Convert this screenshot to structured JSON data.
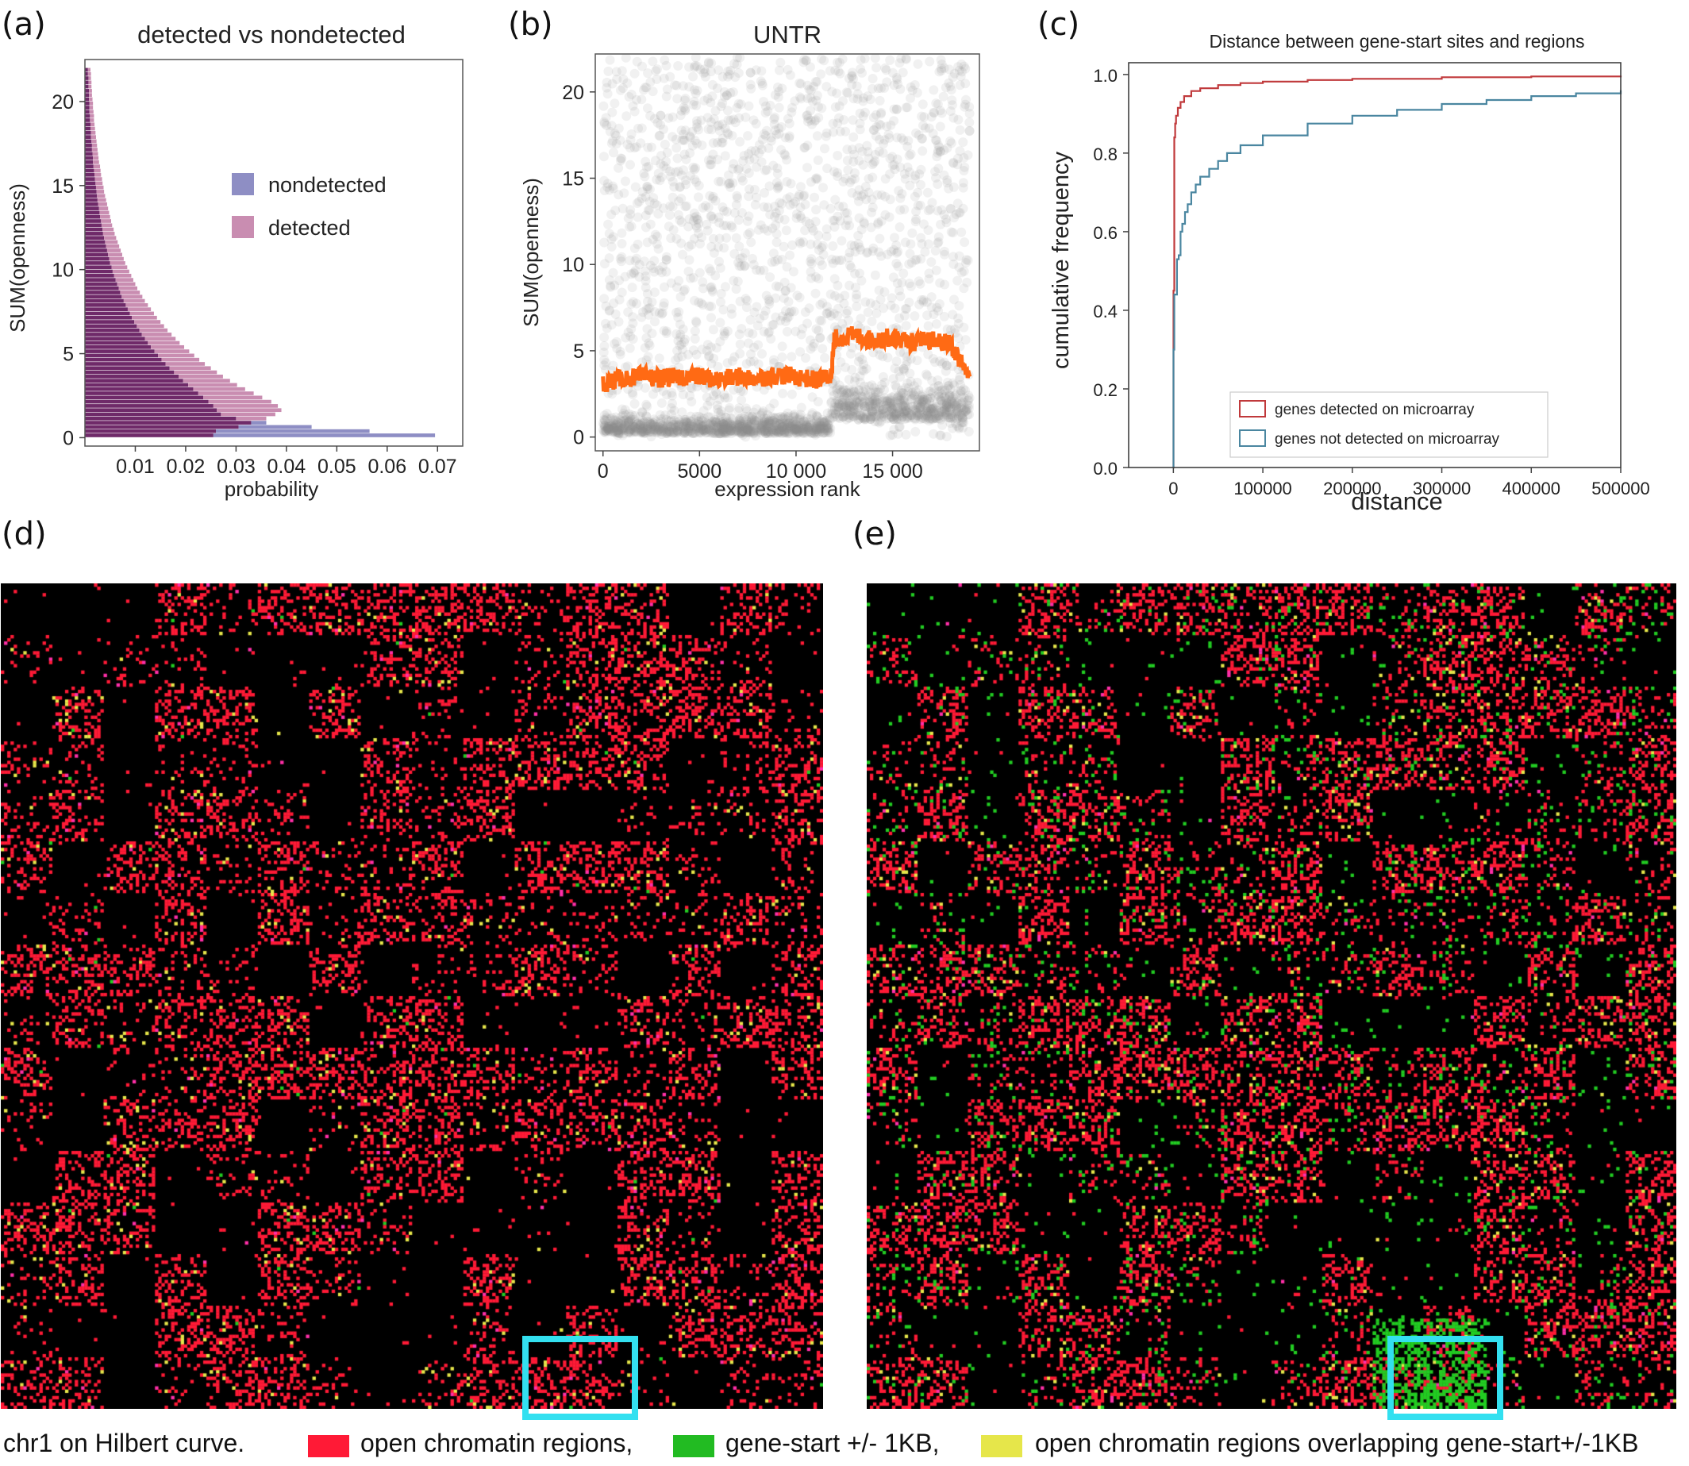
{
  "panels": {
    "a": {
      "letter": "(a)"
    },
    "b": {
      "letter": "(b)"
    },
    "c": {
      "letter": "(c)"
    },
    "d": {
      "letter": "(d)"
    },
    "e": {
      "letter": "(e)"
    }
  },
  "colors": {
    "nondetected": "#8e8ec4",
    "detected": "#c98db1",
    "overlap": "#6f2a69",
    "scatter": "#8c8c8c",
    "trend": "#ff6a14",
    "red_line": "#c0393b",
    "blue_line": "#4a86a0",
    "open": "#ff1a36",
    "gene": "#22cc22",
    "both": "#e6e64a",
    "highlight": "#33e0f0"
  },
  "chart_data": [
    {
      "id": "a",
      "type": "bar",
      "orientation": "horizontal-histogram",
      "title": "detected vs nondetected",
      "xlabel": "probability",
      "ylabel": "SUM(openness)",
      "xlim": [
        0,
        0.075
      ],
      "ylim": [
        -0.5,
        22.5
      ],
      "xticks": [
        0.01,
        0.02,
        0.03,
        0.04,
        0.05,
        0.06,
        0.07
      ],
      "xtick_labels": [
        "0.01",
        "0.02",
        "0.03",
        "0.04",
        "0.05",
        "0.06",
        "0.07"
      ],
      "yticks": [
        0,
        5,
        10,
        15,
        20
      ],
      "ytick_labels": [
        "0",
        "5",
        "10",
        "15",
        "20"
      ],
      "bin_start": 0,
      "bin_width": 0.25,
      "legend_position": "center-right",
      "series": [
        {
          "name": "nondetected",
          "color_key": "nondetected",
          "values": [
            0.0695,
            0.0565,
            0.045,
            0.036,
            0.03,
            0.027,
            0.0262,
            0.0255,
            0.0245,
            0.0235,
            0.0225,
            0.0215,
            0.0205,
            0.0195,
            0.0186,
            0.0177,
            0.0168,
            0.016,
            0.0152,
            0.0145,
            0.0138,
            0.0131,
            0.0125,
            0.0119,
            0.0113,
            0.0108,
            0.0103,
            0.0098,
            0.0093,
            0.0089,
            0.0085,
            0.0081,
            0.0077,
            0.0073,
            0.007,
            0.0067,
            0.0064,
            0.0061,
            0.0058,
            0.0055,
            0.0053,
            0.005,
            0.0048,
            0.0046,
            0.0044,
            0.0042,
            0.004,
            0.0038,
            0.0036,
            0.0035,
            0.0033,
            0.0032,
            0.003,
            0.0029,
            0.0028,
            0.0026,
            0.0025,
            0.0024,
            0.0023,
            0.0022,
            0.0021,
            0.002,
            0.0019,
            0.0018,
            0.0017,
            0.0016,
            0.0016,
            0.0015,
            0.0014,
            0.0014,
            0.0013,
            0.0012,
            0.0012,
            0.0011,
            0.0011,
            0.001,
            0.001,
            0.0009,
            0.0009,
            0.0009,
            0.0008,
            0.0008,
            0.0008,
            0.0007,
            0.0007,
            0.0007,
            0.0006,
            0.0006
          ]
        },
        {
          "name": "detected",
          "color_key": "detected",
          "values": [
            0.0255,
            0.026,
            0.0305,
            0.033,
            0.036,
            0.0378,
            0.039,
            0.0383,
            0.037,
            0.0352,
            0.0335,
            0.0318,
            0.0302,
            0.0288,
            0.0274,
            0.0262,
            0.025,
            0.0238,
            0.0227,
            0.0217,
            0.0207,
            0.0197,
            0.0188,
            0.018,
            0.0172,
            0.0164,
            0.0157,
            0.015,
            0.0143,
            0.0137,
            0.0131,
            0.0125,
            0.0119,
            0.0114,
            0.0109,
            0.0104,
            0.01,
            0.0096,
            0.0092,
            0.0088,
            0.0084,
            0.008,
            0.0077,
            0.0074,
            0.0071,
            0.0068,
            0.0065,
            0.0062,
            0.0059,
            0.0057,
            0.0054,
            0.0052,
            0.005,
            0.0048,
            0.0046,
            0.0044,
            0.0042,
            0.004,
            0.0038,
            0.0037,
            0.0035,
            0.0034,
            0.0032,
            0.0031,
            0.003,
            0.0028,
            0.0027,
            0.0026,
            0.0025,
            0.0024,
            0.0023,
            0.0022,
            0.0021,
            0.002,
            0.0019,
            0.0018,
            0.0018,
            0.0017,
            0.0016,
            0.0016,
            0.0015,
            0.0014,
            0.0014,
            0.0013,
            0.0013,
            0.0012,
            0.0012,
            0.0011
          ]
        }
      ]
    },
    {
      "id": "b",
      "type": "scatter",
      "title": "UNTR",
      "xlabel": "expression rank",
      "ylabel": "SUM(openness)",
      "xlim": [
        -400,
        19500
      ],
      "ylim": [
        -0.8,
        22.2
      ],
      "xticks": [
        0,
        5000,
        10000,
        15000
      ],
      "xtick_labels": [
        "0",
        "5000",
        "10 000",
        "15 000"
      ],
      "yticks": [
        0,
        5,
        10,
        15,
        20
      ],
      "ytick_labels": [
        "0",
        "5",
        "10",
        "15",
        "20"
      ],
      "n_points": 19000,
      "step_at": 11800,
      "trend_series": {
        "x": [
          0,
          1000,
          2000,
          3000,
          4000,
          5000,
          6000,
          7000,
          8000,
          9000,
          10000,
          11000,
          11800,
          12000,
          13000,
          14000,
          15000,
          16000,
          17000,
          18000,
          19000
        ],
        "y": [
          3.1,
          3.4,
          3.5,
          3.4,
          3.5,
          3.5,
          3.3,
          3.5,
          3.4,
          3.6,
          3.5,
          3.3,
          3.5,
          5.7,
          5.9,
          5.6,
          5.8,
          5.5,
          5.6,
          5.4,
          3.5
        ]
      }
    },
    {
      "id": "c",
      "type": "line",
      "title": "Distance between gene-start sites and regions",
      "xlabel": "distance",
      "ylabel": "cumulative frequency",
      "xlim": [
        -50000,
        500000
      ],
      "ylim": [
        0.0,
        1.03
      ],
      "xticks": [
        0,
        100000,
        200000,
        300000,
        400000,
        500000
      ],
      "xtick_labels": [
        "0",
        "100000",
        "200000",
        "300000",
        "400000",
        "500000"
      ],
      "yticks": [
        0.0,
        0.2,
        0.4,
        0.6,
        0.8,
        1.0
      ],
      "ytick_labels": [
        "0.0",
        "0.2",
        "0.4",
        "0.6",
        "0.8",
        "1.0"
      ],
      "legend_position": "lower-right",
      "series": [
        {
          "name": "genes detected on microarray",
          "color_key": "red_line",
          "x": [
            0,
            100,
            1000,
            2000,
            3000,
            5000,
            8000,
            12000,
            20000,
            30000,
            50000,
            75000,
            100000,
            150000,
            200000,
            300000,
            400000,
            500000
          ],
          "y": [
            0.0,
            0.45,
            0.84,
            0.875,
            0.895,
            0.915,
            0.93,
            0.945,
            0.958,
            0.965,
            0.973,
            0.978,
            0.982,
            0.986,
            0.989,
            0.993,
            0.995,
            0.997
          ]
        },
        {
          "name": "genes not detected on microarray",
          "color_key": "blue_line",
          "x": [
            0,
            100,
            1000,
            2000,
            4000,
            6000,
            8000,
            10000,
            13000,
            16000,
            20000,
            25000,
            30000,
            40000,
            50000,
            60000,
            75000,
            100000,
            150000,
            200000,
            250000,
            300000,
            350000,
            400000,
            450000,
            500000
          ],
          "y": [
            0.0,
            0.3,
            0.44,
            0.44,
            0.53,
            0.54,
            0.6,
            0.62,
            0.65,
            0.67,
            0.7,
            0.72,
            0.74,
            0.76,
            0.78,
            0.8,
            0.82,
            0.845,
            0.875,
            0.895,
            0.91,
            0.925,
            0.935,
            0.945,
            0.952,
            0.96
          ]
        }
      ]
    },
    {
      "id": "d",
      "type": "heatmap",
      "description_source": "Hilbert curve map",
      "grid": 256,
      "categories": [
        "open",
        "both",
        "other"
      ],
      "highlight_box": true
    },
    {
      "id": "e",
      "type": "heatmap",
      "description_source": "Hilbert curve map",
      "grid": 256,
      "categories": [
        "open",
        "gene",
        "both",
        "other"
      ],
      "highlight_box": true
    }
  ],
  "caption": {
    "lead": "chr1 on Hilbert curve.",
    "open_label": "open chromatin regions,",
    "gene_label": "gene-start +/- 1KB,",
    "both_label": "open chromatin regions overlapping gene-start+/-1KB"
  }
}
